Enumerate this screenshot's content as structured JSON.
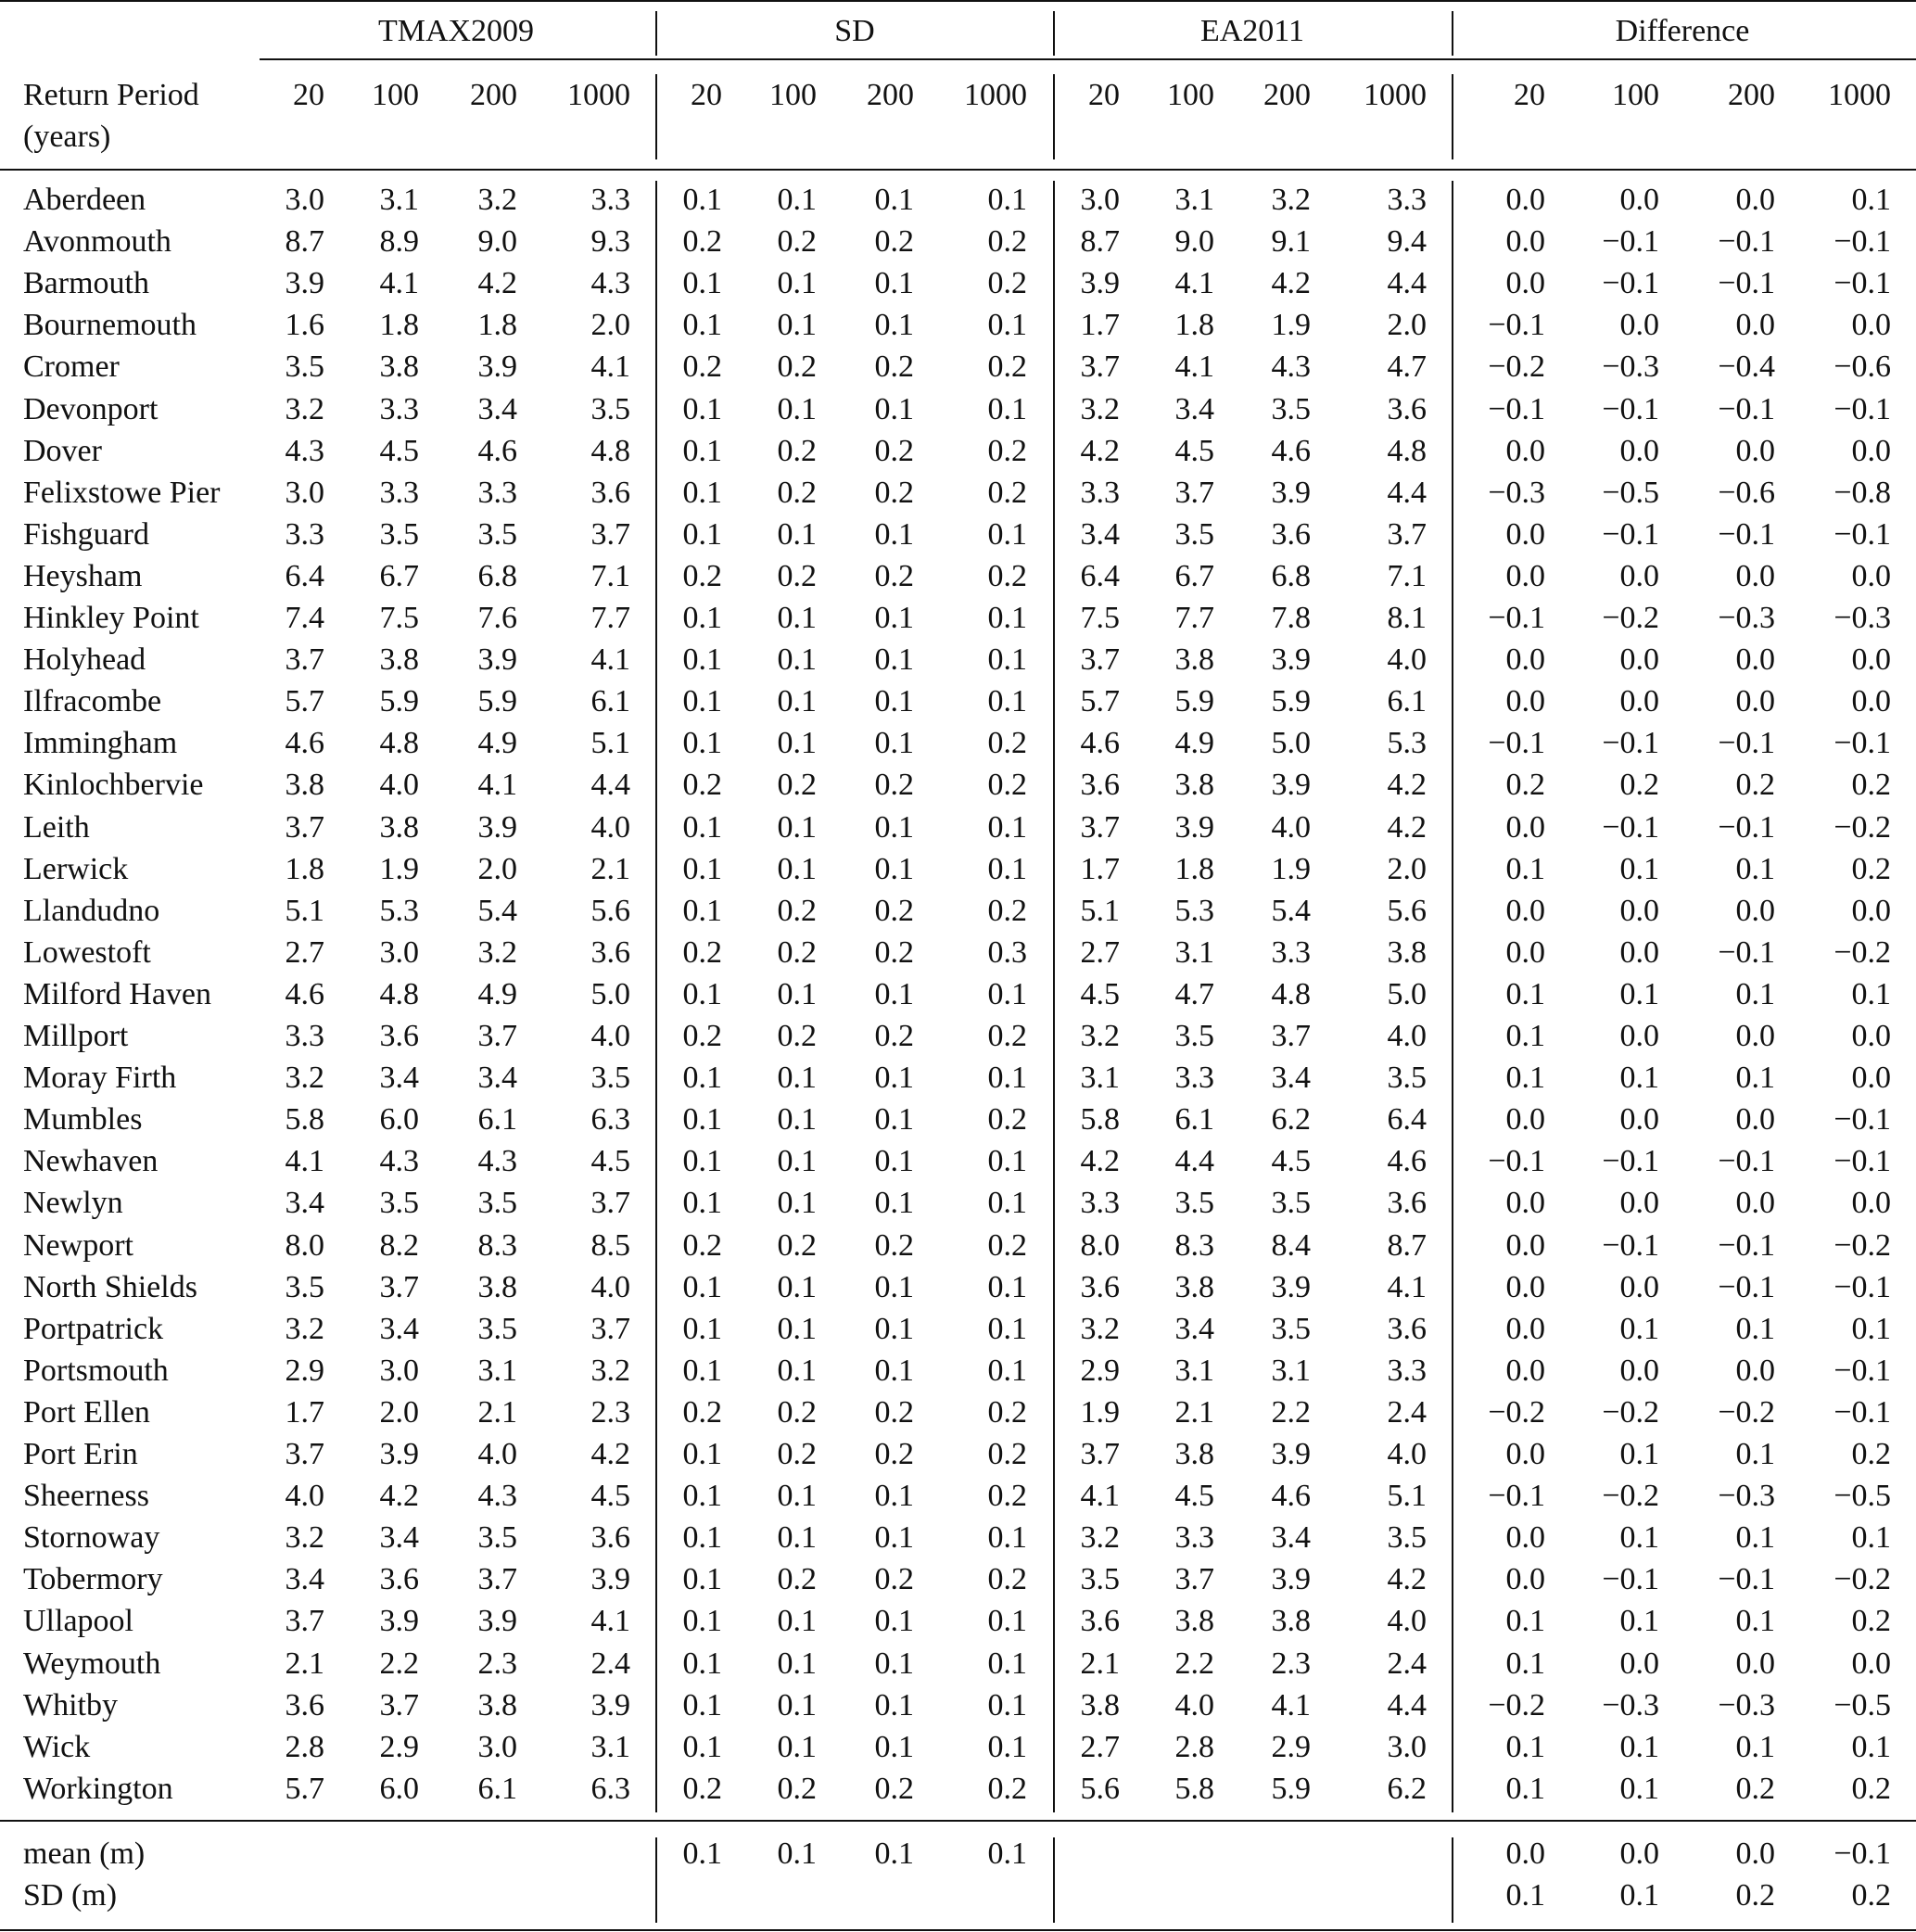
{
  "group_headers": [
    "TMAX2009",
    "SD",
    "EA2011",
    "Difference"
  ],
  "row_header": [
    "Return Period",
    "(years)"
  ],
  "return_periods": [
    "20",
    "100",
    "200",
    "1000"
  ],
  "rows": [
    [
      "Aberdeen",
      "3.0",
      "3.1",
      "3.2",
      "3.3",
      "0.1",
      "0.1",
      "0.1",
      "0.1",
      "3.0",
      "3.1",
      "3.2",
      "3.3",
      "0.0",
      "0.0",
      "0.0",
      "0.1"
    ],
    [
      "Avonmouth",
      "8.7",
      "8.9",
      "9.0",
      "9.3",
      "0.2",
      "0.2",
      "0.2",
      "0.2",
      "8.7",
      "9.0",
      "9.1",
      "9.4",
      "0.0",
      "−0.1",
      "−0.1",
      "−0.1"
    ],
    [
      "Barmouth",
      "3.9",
      "4.1",
      "4.2",
      "4.3",
      "0.1",
      "0.1",
      "0.1",
      "0.2",
      "3.9",
      "4.1",
      "4.2",
      "4.4",
      "0.0",
      "−0.1",
      "−0.1",
      "−0.1"
    ],
    [
      "Bournemouth",
      "1.6",
      "1.8",
      "1.8",
      "2.0",
      "0.1",
      "0.1",
      "0.1",
      "0.1",
      "1.7",
      "1.8",
      "1.9",
      "2.0",
      "−0.1",
      "0.0",
      "0.0",
      "0.0"
    ],
    [
      "Cromer",
      "3.5",
      "3.8",
      "3.9",
      "4.1",
      "0.2",
      "0.2",
      "0.2",
      "0.2",
      "3.7",
      "4.1",
      "4.3",
      "4.7",
      "−0.2",
      "−0.3",
      "−0.4",
      "−0.6"
    ],
    [
      "Devonport",
      "3.2",
      "3.3",
      "3.4",
      "3.5",
      "0.1",
      "0.1",
      "0.1",
      "0.1",
      "3.2",
      "3.4",
      "3.5",
      "3.6",
      "−0.1",
      "−0.1",
      "−0.1",
      "−0.1"
    ],
    [
      "Dover",
      "4.3",
      "4.5",
      "4.6",
      "4.8",
      "0.1",
      "0.2",
      "0.2",
      "0.2",
      "4.2",
      "4.5",
      "4.6",
      "4.8",
      "0.0",
      "0.0",
      "0.0",
      "0.0"
    ],
    [
      "Felixstowe Pier",
      "3.0",
      "3.3",
      "3.3",
      "3.6",
      "0.1",
      "0.2",
      "0.2",
      "0.2",
      "3.3",
      "3.7",
      "3.9",
      "4.4",
      "−0.3",
      "−0.5",
      "−0.6",
      "−0.8"
    ],
    [
      "Fishguard",
      "3.3",
      "3.5",
      "3.5",
      "3.7",
      "0.1",
      "0.1",
      "0.1",
      "0.1",
      "3.4",
      "3.5",
      "3.6",
      "3.7",
      "0.0",
      "−0.1",
      "−0.1",
      "−0.1"
    ],
    [
      "Heysham",
      "6.4",
      "6.7",
      "6.8",
      "7.1",
      "0.2",
      "0.2",
      "0.2",
      "0.2",
      "6.4",
      "6.7",
      "6.8",
      "7.1",
      "0.0",
      "0.0",
      "0.0",
      "0.0"
    ],
    [
      "Hinkley Point",
      "7.4",
      "7.5",
      "7.6",
      "7.7",
      "0.1",
      "0.1",
      "0.1",
      "0.1",
      "7.5",
      "7.7",
      "7.8",
      "8.1",
      "−0.1",
      "−0.2",
      "−0.3",
      "−0.3"
    ],
    [
      "Holyhead",
      "3.7",
      "3.8",
      "3.9",
      "4.1",
      "0.1",
      "0.1",
      "0.1",
      "0.1",
      "3.7",
      "3.8",
      "3.9",
      "4.0",
      "0.0",
      "0.0",
      "0.0",
      "0.0"
    ],
    [
      "Ilfracombe",
      "5.7",
      "5.9",
      "5.9",
      "6.1",
      "0.1",
      "0.1",
      "0.1",
      "0.1",
      "5.7",
      "5.9",
      "5.9",
      "6.1",
      "0.0",
      "0.0",
      "0.0",
      "0.0"
    ],
    [
      "Immingham",
      "4.6",
      "4.8",
      "4.9",
      "5.1",
      "0.1",
      "0.1",
      "0.1",
      "0.2",
      "4.6",
      "4.9",
      "5.0",
      "5.3",
      "−0.1",
      "−0.1",
      "−0.1",
      "−0.1"
    ],
    [
      "Kinlochbervie",
      "3.8",
      "4.0",
      "4.1",
      "4.4",
      "0.2",
      "0.2",
      "0.2",
      "0.2",
      "3.6",
      "3.8",
      "3.9",
      "4.2",
      "0.2",
      "0.2",
      "0.2",
      "0.2"
    ],
    [
      "Leith",
      "3.7",
      "3.8",
      "3.9",
      "4.0",
      "0.1",
      "0.1",
      "0.1",
      "0.1",
      "3.7",
      "3.9",
      "4.0",
      "4.2",
      "0.0",
      "−0.1",
      "−0.1",
      "−0.2"
    ],
    [
      "Lerwick",
      "1.8",
      "1.9",
      "2.0",
      "2.1",
      "0.1",
      "0.1",
      "0.1",
      "0.1",
      "1.7",
      "1.8",
      "1.9",
      "2.0",
      "0.1",
      "0.1",
      "0.1",
      "0.2"
    ],
    [
      "Llandudno",
      "5.1",
      "5.3",
      "5.4",
      "5.6",
      "0.1",
      "0.2",
      "0.2",
      "0.2",
      "5.1",
      "5.3",
      "5.4",
      "5.6",
      "0.0",
      "0.0",
      "0.0",
      "0.0"
    ],
    [
      "Lowestoft",
      "2.7",
      "3.0",
      "3.2",
      "3.6",
      "0.2",
      "0.2",
      "0.2",
      "0.3",
      "2.7",
      "3.1",
      "3.3",
      "3.8",
      "0.0",
      "0.0",
      "−0.1",
      "−0.2"
    ],
    [
      "Milford Haven",
      "4.6",
      "4.8",
      "4.9",
      "5.0",
      "0.1",
      "0.1",
      "0.1",
      "0.1",
      "4.5",
      "4.7",
      "4.8",
      "5.0",
      "0.1",
      "0.1",
      "0.1",
      "0.1"
    ],
    [
      "Millport",
      "3.3",
      "3.6",
      "3.7",
      "4.0",
      "0.2",
      "0.2",
      "0.2",
      "0.2",
      "3.2",
      "3.5",
      "3.7",
      "4.0",
      "0.1",
      "0.0",
      "0.0",
      "0.0"
    ],
    [
      "Moray Firth",
      "3.2",
      "3.4",
      "3.4",
      "3.5",
      "0.1",
      "0.1",
      "0.1",
      "0.1",
      "3.1",
      "3.3",
      "3.4",
      "3.5",
      "0.1",
      "0.1",
      "0.1",
      "0.0"
    ],
    [
      "Mumbles",
      "5.8",
      "6.0",
      "6.1",
      "6.3",
      "0.1",
      "0.1",
      "0.1",
      "0.2",
      "5.8",
      "6.1",
      "6.2",
      "6.4",
      "0.0",
      "0.0",
      "0.0",
      "−0.1"
    ],
    [
      "Newhaven",
      "4.1",
      "4.3",
      "4.3",
      "4.5",
      "0.1",
      "0.1",
      "0.1",
      "0.1",
      "4.2",
      "4.4",
      "4.5",
      "4.6",
      "−0.1",
      "−0.1",
      "−0.1",
      "−0.1"
    ],
    [
      "Newlyn",
      "3.4",
      "3.5",
      "3.5",
      "3.7",
      "0.1",
      "0.1",
      "0.1",
      "0.1",
      "3.3",
      "3.5",
      "3.5",
      "3.6",
      "0.0",
      "0.0",
      "0.0",
      "0.0"
    ],
    [
      "Newport",
      "8.0",
      "8.2",
      "8.3",
      "8.5",
      "0.2",
      "0.2",
      "0.2",
      "0.2",
      "8.0",
      "8.3",
      "8.4",
      "8.7",
      "0.0",
      "−0.1",
      "−0.1",
      "−0.2"
    ],
    [
      "North Shields",
      "3.5",
      "3.7",
      "3.8",
      "4.0",
      "0.1",
      "0.1",
      "0.1",
      "0.1",
      "3.6",
      "3.8",
      "3.9",
      "4.1",
      "0.0",
      "0.0",
      "−0.1",
      "−0.1"
    ],
    [
      "Portpatrick",
      "3.2",
      "3.4",
      "3.5",
      "3.7",
      "0.1",
      "0.1",
      "0.1",
      "0.1",
      "3.2",
      "3.4",
      "3.5",
      "3.6",
      "0.0",
      "0.1",
      "0.1",
      "0.1"
    ],
    [
      "Portsmouth",
      "2.9",
      "3.0",
      "3.1",
      "3.2",
      "0.1",
      "0.1",
      "0.1",
      "0.1",
      "2.9",
      "3.1",
      "3.1",
      "3.3",
      "0.0",
      "0.0",
      "0.0",
      "−0.1"
    ],
    [
      "Port Ellen",
      "1.7",
      "2.0",
      "2.1",
      "2.3",
      "0.2",
      "0.2",
      "0.2",
      "0.2",
      "1.9",
      "2.1",
      "2.2",
      "2.4",
      "−0.2",
      "−0.2",
      "−0.2",
      "−0.1"
    ],
    [
      "Port Erin",
      "3.7",
      "3.9",
      "4.0",
      "4.2",
      "0.1",
      "0.2",
      "0.2",
      "0.2",
      "3.7",
      "3.8",
      "3.9",
      "4.0",
      "0.0",
      "0.1",
      "0.1",
      "0.2"
    ],
    [
      "Sheerness",
      "4.0",
      "4.2",
      "4.3",
      "4.5",
      "0.1",
      "0.1",
      "0.1",
      "0.2",
      "4.1",
      "4.5",
      "4.6",
      "5.1",
      "−0.1",
      "−0.2",
      "−0.3",
      "−0.5"
    ],
    [
      "Stornoway",
      "3.2",
      "3.4",
      "3.5",
      "3.6",
      "0.1",
      "0.1",
      "0.1",
      "0.1",
      "3.2",
      "3.3",
      "3.4",
      "3.5",
      "0.0",
      "0.1",
      "0.1",
      "0.1"
    ],
    [
      "Tobermory",
      "3.4",
      "3.6",
      "3.7",
      "3.9",
      "0.1",
      "0.2",
      "0.2",
      "0.2",
      "3.5",
      "3.7",
      "3.9",
      "4.2",
      "0.0",
      "−0.1",
      "−0.1",
      "−0.2"
    ],
    [
      "Ullapool",
      "3.7",
      "3.9",
      "3.9",
      "4.1",
      "0.1",
      "0.1",
      "0.1",
      "0.1",
      "3.6",
      "3.8",
      "3.8",
      "4.0",
      "0.1",
      "0.1",
      "0.1",
      "0.2"
    ],
    [
      "Weymouth",
      "2.1",
      "2.2",
      "2.3",
      "2.4",
      "0.1",
      "0.1",
      "0.1",
      "0.1",
      "2.1",
      "2.2",
      "2.3",
      "2.4",
      "0.1",
      "0.0",
      "0.0",
      "0.0"
    ],
    [
      "Whitby",
      "3.6",
      "3.7",
      "3.8",
      "3.9",
      "0.1",
      "0.1",
      "0.1",
      "0.1",
      "3.8",
      "4.0",
      "4.1",
      "4.4",
      "−0.2",
      "−0.3",
      "−0.3",
      "−0.5"
    ],
    [
      "Wick",
      "2.8",
      "2.9",
      "3.0",
      "3.1",
      "0.1",
      "0.1",
      "0.1",
      "0.1",
      "2.7",
      "2.8",
      "2.9",
      "3.0",
      "0.1",
      "0.1",
      "0.1",
      "0.1"
    ],
    [
      "Workington",
      "5.7",
      "6.0",
      "6.1",
      "6.3",
      "0.2",
      "0.2",
      "0.2",
      "0.2",
      "5.6",
      "5.8",
      "5.9",
      "6.2",
      "0.1",
      "0.1",
      "0.2",
      "0.2"
    ]
  ],
  "summary": [
    [
      "mean (m)",
      "",
      "",
      "",
      "",
      "0.1",
      "0.1",
      "0.1",
      "0.1",
      "",
      "",
      "",
      "",
      "0.0",
      "0.0",
      "0.0",
      "−0.1"
    ],
    [
      "SD (m)",
      "",
      "",
      "",
      "",
      "",
      "",
      "",
      "",
      "",
      "",
      "",
      "",
      "0.1",
      "0.1",
      "0.2",
      "0.2"
    ]
  ]
}
